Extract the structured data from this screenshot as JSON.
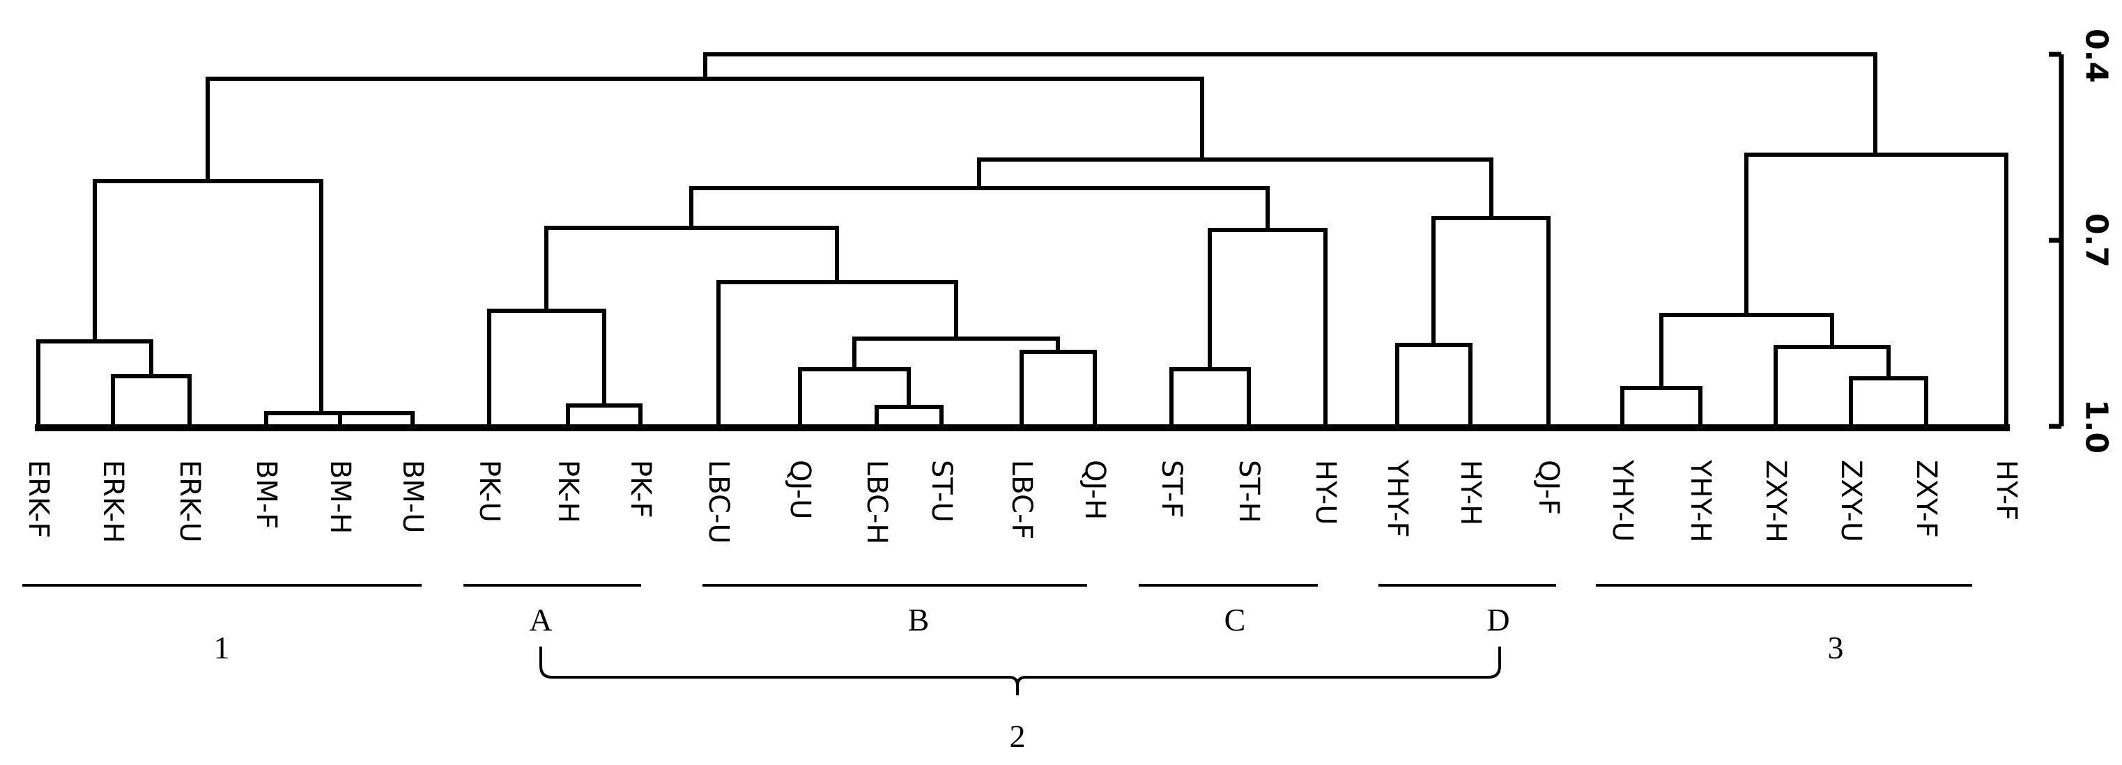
{
  "axis": {
    "ticks": [
      {
        "label": "0.4",
        "value": 0.4
      },
      {
        "label": "0.7",
        "value": 0.7
      },
      {
        "label": "1.0",
        "value": 1.0
      }
    ]
  },
  "leaves": [
    "ERK-F",
    "ERK-H",
    "ERK-U",
    "BM-F",
    "BM-H",
    "BM-U",
    "PK-U",
    "PK-H",
    "PK-F",
    "LBC-U",
    "QJ-U",
    "LBC-H",
    "ST-U",
    "LBC-F",
    "QJ-H",
    "ST-F",
    "ST-H",
    "HY-U",
    "YHY-F",
    "HY-H",
    "QJ-F",
    "YHY-U",
    "YHY-H",
    "ZXY-H",
    "ZXY-U",
    "ZXY-F",
    "HY-F"
  ],
  "groups": [
    {
      "label": "1",
      "from": 0,
      "to": 5
    },
    {
      "label": "A",
      "from": 6,
      "to": 8
    },
    {
      "label": "B",
      "from": 9,
      "to": 14
    },
    {
      "label": "C",
      "from": 15,
      "to": 17
    },
    {
      "label": "D",
      "from": 18,
      "to": 20
    },
    {
      "label": "3",
      "from": 21,
      "to": 26
    }
  ],
  "supergroup": {
    "label": "2",
    "from_group": "A",
    "to_group": "D"
  }
}
